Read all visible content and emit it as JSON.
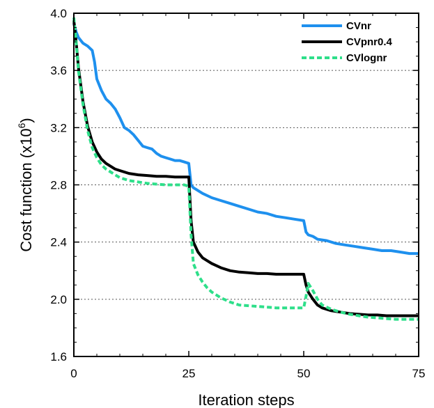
{
  "chart_data": {
    "type": "line",
    "title": "",
    "xlabel": "Iteration steps",
    "ylabel_main": "Cost function (x10",
    "ylabel_sup": "6",
    "ylabel_close": ")",
    "xlim": [
      0,
      75
    ],
    "ylim": [
      1.6,
      4.0
    ],
    "x_ticks": [
      0,
      25,
      50,
      75
    ],
    "x_tick_labels": [
      "0",
      "25",
      "50",
      "75"
    ],
    "y_ticks": [
      1.6,
      2.0,
      2.4,
      2.8,
      3.2,
      3.6,
      4.0
    ],
    "y_tick_labels": [
      "1.6",
      "2.0",
      "2.4",
      "2.8",
      "3.2",
      "3.6",
      "4.0"
    ],
    "y_gridlines": [
      2.0,
      2.4,
      2.8,
      3.2,
      3.6
    ],
    "grid": "horizontal dotted",
    "legend_position": "top-right",
    "series": [
      {
        "name": "CVnr",
        "color": "#1e90ee",
        "dash": "solid",
        "x": [
          0,
          0.5,
          1,
          2,
          3,
          4,
          4.5,
          5,
          6,
          7,
          8,
          9,
          10,
          11,
          12,
          13,
          14,
          15,
          16,
          17,
          18,
          19,
          20,
          21,
          22,
          23,
          24,
          25,
          25.5,
          26,
          28,
          30,
          32,
          34,
          36,
          38,
          40,
          42,
          44,
          46,
          48,
          50,
          50.5,
          51,
          52,
          53,
          55,
          57,
          59,
          61,
          63,
          65,
          67,
          69,
          71,
          73,
          75
        ],
        "y": [
          3.93,
          3.87,
          3.83,
          3.79,
          3.77,
          3.74,
          3.66,
          3.54,
          3.46,
          3.4,
          3.37,
          3.33,
          3.27,
          3.2,
          3.18,
          3.15,
          3.11,
          3.07,
          3.06,
          3.05,
          3.02,
          3.0,
          2.99,
          2.98,
          2.97,
          2.97,
          2.96,
          2.95,
          2.8,
          2.78,
          2.74,
          2.71,
          2.69,
          2.67,
          2.65,
          2.63,
          2.61,
          2.6,
          2.58,
          2.57,
          2.56,
          2.55,
          2.47,
          2.45,
          2.44,
          2.42,
          2.41,
          2.39,
          2.38,
          2.37,
          2.36,
          2.35,
          2.34,
          2.34,
          2.33,
          2.32,
          2.32
        ]
      },
      {
        "name": "CVpnr0.4",
        "color": "#000000",
        "dash": "solid",
        "x": [
          0,
          0.5,
          1,
          2,
          3,
          4,
          5,
          6,
          7,
          8,
          9,
          10,
          12,
          14,
          16,
          18,
          20,
          22,
          24,
          25,
          25.5,
          26,
          27,
          28,
          29,
          30,
          32,
          34,
          36,
          38,
          40,
          42,
          44,
          46,
          48,
          50,
          50.5,
          51,
          52,
          53,
          54,
          56,
          58,
          60,
          62,
          64,
          66,
          68,
          70,
          72,
          75
        ],
        "y": [
          3.95,
          3.8,
          3.62,
          3.38,
          3.21,
          3.1,
          3.03,
          2.98,
          2.95,
          2.93,
          2.91,
          2.9,
          2.88,
          2.87,
          2.865,
          2.86,
          2.86,
          2.855,
          2.855,
          2.855,
          2.55,
          2.4,
          2.33,
          2.29,
          2.27,
          2.25,
          2.22,
          2.2,
          2.19,
          2.185,
          2.18,
          2.18,
          2.175,
          2.175,
          2.175,
          2.175,
          2.1,
          2.05,
          2.0,
          1.96,
          1.94,
          1.92,
          1.91,
          1.9,
          1.895,
          1.89,
          1.89,
          1.885,
          1.885,
          1.885,
          1.885
        ]
      },
      {
        "name": "CVlognr",
        "color": "#2edf8a",
        "dash": "dashed",
        "x": [
          0,
          0.5,
          1,
          2,
          3,
          4,
          5,
          6,
          7,
          8,
          9,
          10,
          12,
          14,
          16,
          18,
          20,
          22,
          24,
          25,
          25.5,
          26,
          27,
          28,
          29,
          30,
          32,
          34,
          36,
          38,
          40,
          42,
          44,
          46,
          48,
          50,
          50.5,
          51,
          52,
          53,
          54,
          56,
          58,
          60,
          62,
          64,
          66,
          68,
          70,
          72,
          75
        ],
        "y": [
          3.97,
          3.8,
          3.6,
          3.36,
          3.18,
          3.06,
          2.99,
          2.94,
          2.91,
          2.89,
          2.87,
          2.85,
          2.83,
          2.82,
          2.81,
          2.805,
          2.8,
          2.8,
          2.8,
          2.79,
          2.45,
          2.25,
          2.17,
          2.12,
          2.08,
          2.05,
          2.01,
          1.98,
          1.96,
          1.955,
          1.95,
          1.945,
          1.94,
          1.94,
          1.94,
          1.94,
          2.02,
          2.11,
          2.06,
          2.0,
          1.96,
          1.93,
          1.91,
          1.895,
          1.885,
          1.875,
          1.87,
          1.865,
          1.86,
          1.86,
          1.86
        ]
      }
    ]
  }
}
